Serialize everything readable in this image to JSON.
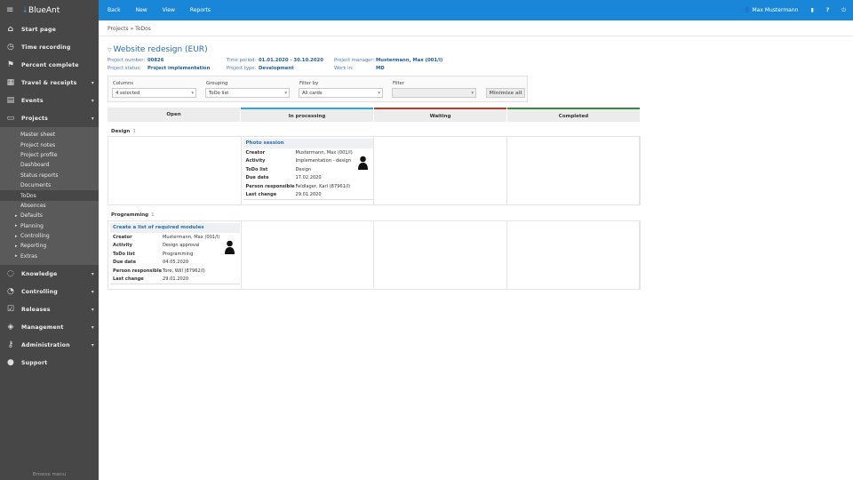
{
  "app": {
    "name": "BlueAnt",
    "browse_menu": "Browse menu"
  },
  "sidebar": {
    "items": [
      {
        "label": "Start page",
        "icon": "home-icon"
      },
      {
        "label": "Time recording",
        "icon": "stopwatch-icon"
      },
      {
        "label": "Percent complete",
        "icon": "flag-icon"
      },
      {
        "label": "Travel & receipts",
        "icon": "calculator-icon"
      },
      {
        "label": "Events",
        "icon": "calendar-icon"
      },
      {
        "label": "Projects",
        "icon": "folder-icon"
      }
    ],
    "submenu": [
      "Master sheet",
      "Project notes",
      "Project profile",
      "Dashboard",
      "Status reports",
      "Documents",
      "ToDos",
      "Absences",
      "Defaults",
      "Planning",
      "Controlling",
      "Reporting",
      "Extras"
    ],
    "items_after": [
      {
        "label": "Knowledge",
        "icon": "bulb-icon"
      },
      {
        "label": "Controlling",
        "icon": "gauge-icon"
      },
      {
        "label": "Releases",
        "icon": "checkbox-icon"
      },
      {
        "label": "Management",
        "icon": "tag-icon"
      },
      {
        "label": "Administration",
        "icon": "key-icon"
      },
      {
        "label": "Support",
        "icon": "lifebuoy-icon"
      }
    ]
  },
  "topbar": {
    "menu": [
      "Back",
      "New",
      "View",
      "Reports"
    ],
    "user": "Max Mustermann",
    "accent": "#1a86d8"
  },
  "breadcrumb": [
    "Projects",
    "ToDos"
  ],
  "project": {
    "title": "Website redesign (EUR)",
    "number_label": "Project number:",
    "number": "00826",
    "status_label": "Project status:",
    "status": "Project implementation",
    "period_label": "Time period:",
    "period": "01.01.2020 - 30.10.2020",
    "type_label": "Project type:",
    "type": "Development",
    "manager_label": "Project manager:",
    "manager": "Mustermann, Max (001/I)",
    "workin_label": "Work in:",
    "workin": "MD"
  },
  "filters": {
    "columns_label": "Columns",
    "columns": "4 selected",
    "grouping_label": "Grouping",
    "grouping": "ToDo list",
    "filterby_label": "Filter by",
    "filterby": "All cards",
    "filter_label": "Filter",
    "filter": "",
    "minimize": "Minimize all"
  },
  "board": {
    "columns": [
      {
        "label": "Open",
        "color": ""
      },
      {
        "label": "In processing",
        "color": "#29a8e0"
      },
      {
        "label": "Waiting",
        "color": "#c0392b"
      },
      {
        "label": "Completed",
        "color": "#3a8a3a"
      }
    ],
    "groups": [
      {
        "name": "Design",
        "count": "1",
        "card": {
          "title": "Photo session",
          "fields": [
            [
              "Creator",
              "Mustermann, Max (001/I)"
            ],
            [
              "Activity",
              "Implementation - design"
            ],
            [
              "ToDo list",
              "Design"
            ],
            [
              "Due date",
              "17.02.2020"
            ],
            [
              "Person responsible",
              "Feldlager, Karl (87961/I)"
            ],
            [
              "Last change",
              "29.01.2020"
            ]
          ]
        }
      },
      {
        "name": "Programming",
        "count": "1",
        "card": {
          "title": "Create a list of required modules",
          "fields": [
            [
              "Creator",
              "Mustermann, Max (001/I)"
            ],
            [
              "Activity",
              "Design approval"
            ],
            [
              "ToDo list",
              "Programming"
            ],
            [
              "Due date",
              "04.05.2020"
            ],
            [
              "Person responsible",
              "Tore, Will (87962/I)"
            ],
            [
              "Last change",
              "29.01.2020"
            ]
          ]
        }
      }
    ]
  }
}
